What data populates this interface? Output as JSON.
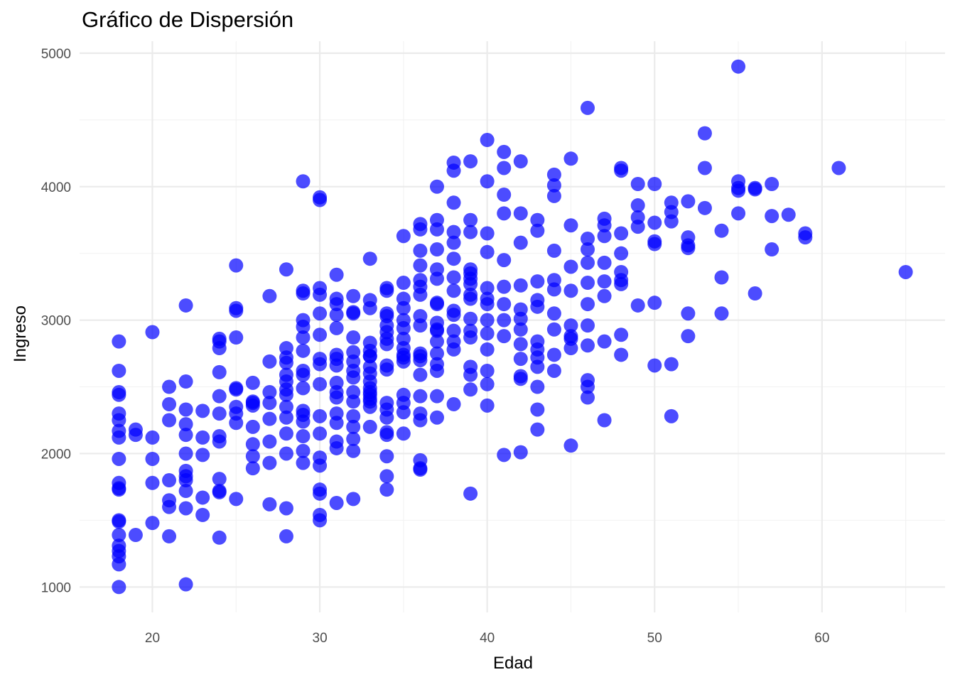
{
  "chart_data": {
    "type": "scatter",
    "title": "Gráfico de Dispersión",
    "xlabel": "Edad",
    "ylabel": "Ingreso",
    "xlim": [
      15.65,
      67.35
    ],
    "ylim": [
      810,
      5090
    ],
    "x_ticks": [
      20,
      30,
      40,
      50,
      60
    ],
    "y_ticks": [
      1000,
      2000,
      3000,
      4000,
      5000
    ],
    "x_tick_labels": [
      "20",
      "30",
      "40",
      "50",
      "60"
    ],
    "y_tick_labels": [
      "1000",
      "2000",
      "3000",
      "4000",
      "5000"
    ],
    "grid": true,
    "legend": "none",
    "point_color": "#0000ff",
    "series": [
      {
        "x": [
          18,
          18,
          18,
          18,
          18,
          18,
          18,
          18,
          18,
          18,
          18,
          18,
          18,
          18,
          18,
          18,
          18,
          18,
          18,
          18,
          19,
          19,
          19,
          20,
          20,
          20,
          20,
          20,
          21,
          21,
          21,
          21,
          21,
          21,
          21,
          22,
          22,
          22,
          22,
          22,
          22,
          22,
          22,
          22,
          22,
          22,
          22,
          23,
          23,
          23,
          23,
          23,
          24,
          24,
          24,
          24,
          24,
          24,
          24,
          24,
          24,
          24,
          24,
          24,
          25,
          25,
          25,
          25,
          25,
          25,
          25,
          25,
          25,
          25,
          26,
          26,
          26,
          26,
          26,
          26,
          26,
          26,
          27,
          27,
          27,
          27,
          27,
          27,
          27,
          27,
          28,
          28,
          28,
          28,
          28,
          28,
          28,
          28,
          28,
          28,
          28,
          28,
          28,
          28,
          29,
          29,
          29,
          29,
          29,
          29,
          29,
          29,
          29,
          29,
          29,
          29,
          29,
          29,
          29,
          29,
          30,
          30,
          30,
          30,
          30,
          30,
          30,
          30,
          30,
          30,
          30,
          30,
          30,
          30,
          30,
          30,
          30,
          31,
          31,
          31,
          31,
          31,
          31,
          31,
          31,
          31,
          31,
          31,
          31,
          31,
          31,
          31,
          31,
          32,
          32,
          32,
          32,
          32,
          32,
          32,
          32,
          32,
          32,
          32,
          32,
          32,
          32,
          32,
          33,
          33,
          33,
          33,
          33,
          33,
          33,
          33,
          33,
          33,
          33,
          33,
          33,
          33,
          33,
          33,
          33,
          34,
          34,
          34,
          34,
          34,
          34,
          34,
          34,
          34,
          34,
          34,
          34,
          34,
          34,
          34,
          34,
          34,
          34,
          35,
          35,
          35,
          35,
          35,
          35,
          35,
          35,
          35,
          35,
          35,
          35,
          35,
          35,
          35,
          36,
          36,
          36,
          36,
          36,
          36,
          36,
          36,
          36,
          36,
          36,
          36,
          36,
          36,
          36,
          36,
          36,
          36,
          36,
          37,
          37,
          37,
          37,
          37,
          37,
          37,
          37,
          37,
          37,
          37,
          37,
          37,
          37,
          37,
          37,
          37,
          38,
          38,
          38,
          38,
          38,
          38,
          38,
          38,
          38,
          38,
          38,
          38,
          38,
          38,
          39,
          39,
          39,
          39,
          39,
          39,
          39,
          39,
          39,
          39,
          39,
          39,
          39,
          39,
          39,
          39,
          40,
          40,
          40,
          40,
          40,
          40,
          40,
          40,
          40,
          40,
          40,
          40,
          40,
          41,
          41,
          41,
          41,
          41,
          41,
          41,
          41,
          41,
          41,
          42,
          42,
          42,
          42,
          42,
          42,
          42,
          42,
          42,
          42,
          42,
          42,
          43,
          43,
          43,
          43,
          43,
          43,
          43,
          43,
          43,
          43,
          43,
          43,
          44,
          44,
          44,
          44,
          44,
          44,
          44,
          44,
          44,
          44,
          45,
          45,
          45,
          45,
          45,
          45,
          45,
          45,
          45,
          46,
          46,
          46,
          46,
          46,
          46,
          46,
          46,
          46,
          46,
          46,
          47,
          47,
          47,
          47,
          47,
          47,
          47,
          47,
          48,
          48,
          48,
          48,
          48,
          48,
          48,
          48,
          48,
          49,
          49,
          49,
          49,
          49,
          50,
          50,
          50,
          50,
          50,
          50,
          51,
          51,
          51,
          51,
          51,
          52,
          52,
          52,
          52,
          52,
          52,
          53,
          53,
          53,
          54,
          54,
          54,
          55,
          55,
          55,
          55,
          55,
          56,
          56,
          56,
          57,
          57,
          57,
          58,
          59,
          59,
          61,
          65
        ],
        "y": [
          2840,
          2620,
          2460,
          2440,
          2300,
          2250,
          2170,
          2120,
          1960,
          1780,
          1740,
          1730,
          1500,
          1490,
          1390,
          1310,
          1270,
          1230,
          1170,
          1000,
          2180,
          2140,
          1390,
          2910,
          2120,
          1960,
          1780,
          1480,
          2500,
          2370,
          2250,
          1800,
          1650,
          1600,
          1380,
          3110,
          2540,
          2330,
          2220,
          2140,
          2000,
          1870,
          1830,
          1800,
          1720,
          1590,
          1020,
          2320,
          2120,
          1990,
          1670,
          1540,
          2860,
          2840,
          2790,
          2610,
          2430,
          2300,
          2130,
          2090,
          1810,
          1720,
          1710,
          1370,
          3410,
          3090,
          3070,
          2870,
          2490,
          2480,
          2350,
          2300,
          2230,
          1660,
          2530,
          2360,
          2200,
          2070,
          1980,
          1890,
          2380,
          2390,
          3180,
          2690,
          2460,
          2380,
          2260,
          2090,
          1930,
          1620,
          3380,
          2790,
          2720,
          2680,
          2590,
          2540,
          2480,
          2440,
          2350,
          2270,
          2150,
          2000,
          1590,
          1380,
          4040,
          3220,
          3200,
          3000,
          2950,
          2870,
          2770,
          2620,
          2590,
          2490,
          2320,
          2290,
          2240,
          2130,
          2020,
          1930,
          3920,
          3900,
          3240,
          3190,
          3050,
          2890,
          2710,
          2670,
          2520,
          2280,
          2150,
          1970,
          1910,
          1730,
          1700,
          1540,
          1500,
          3340,
          3160,
          3120,
          3040,
          2940,
          2740,
          2710,
          2660,
          2530,
          2460,
          2420,
          2300,
          2230,
          2090,
          2040,
          1630,
          3180,
          3060,
          3050,
          2870,
          2760,
          2690,
          2620,
          2570,
          2460,
          2390,
          2280,
          2200,
          2110,
          2020,
          1660,
          3460,
          3150,
          3090,
          2830,
          2770,
          2730,
          2650,
          2600,
          2540,
          2490,
          2460,
          2440,
          2410,
          2390,
          2350,
          2200,
          2730,
          3240,
          3220,
          3050,
          3030,
          2960,
          2910,
          2860,
          2820,
          2660,
          2630,
          2380,
          2330,
          2270,
          2160,
          2140,
          1980,
          1830,
          1730,
          3630,
          3280,
          3160,
          3090,
          3000,
          2940,
          2860,
          2790,
          2740,
          2720,
          2690,
          2440,
          2380,
          2310,
          2150,
          3720,
          3680,
          3520,
          3410,
          3300,
          3250,
          3190,
          3030,
          2960,
          2750,
          2730,
          2700,
          2590,
          2430,
          2300,
          2250,
          1950,
          1890,
          1880,
          4000,
          3750,
          3680,
          3530,
          3380,
          3310,
          3130,
          3120,
          2980,
          2920,
          2840,
          2750,
          2670,
          2620,
          2430,
          2270,
          2930,
          4180,
          4120,
          3880,
          3660,
          3580,
          3460,
          3320,
          3220,
          3070,
          3040,
          2920,
          2840,
          2780,
          2370,
          4190,
          3750,
          3660,
          3380,
          3350,
          3310,
          3270,
          3190,
          3160,
          3010,
          2920,
          2870,
          2650,
          2590,
          2480,
          1700,
          4350,
          4040,
          3650,
          3510,
          3240,
          3160,
          3120,
          3000,
          2900,
          2780,
          2620,
          2520,
          2360,
          4260,
          4140,
          3940,
          3800,
          3450,
          3250,
          3120,
          3000,
          2880,
          1990,
          4190,
          3800,
          3580,
          3260,
          3080,
          3010,
          2930,
          2820,
          2710,
          2580,
          2560,
          2010,
          3750,
          3670,
          3290,
          3150,
          3100,
          2840,
          2780,
          2720,
          2650,
          2500,
          2330,
          2180,
          4090,
          4010,
          3930,
          3520,
          3300,
          3230,
          3050,
          2930,
          2740,
          2620,
          4210,
          3710,
          3400,
          3220,
          2960,
          2880,
          2860,
          2790,
          2060,
          4590,
          3610,
          3530,
          3430,
          3280,
          3120,
          2960,
          2810,
          2550,
          2500,
          2420,
          3760,
          3710,
          3630,
          3430,
          3290,
          3180,
          2840,
          2250,
          4140,
          4120,
          3650,
          3500,
          3360,
          3300,
          3270,
          2890,
          2740,
          4020,
          3860,
          3770,
          3700,
          3110,
          4020,
          3730,
          3590,
          3570,
          3130,
          2660,
          3880,
          3810,
          3740,
          2670,
          2280,
          3890,
          3620,
          3560,
          3540,
          3050,
          2880,
          4400,
          4140,
          3840,
          3670,
          3320,
          3050,
          4900,
          4040,
          3990,
          3970,
          3800,
          3990,
          3980,
          3200,
          4020,
          3780,
          3530,
          3790,
          3650,
          3620,
          4140,
          3360
        ]
      }
    ]
  }
}
